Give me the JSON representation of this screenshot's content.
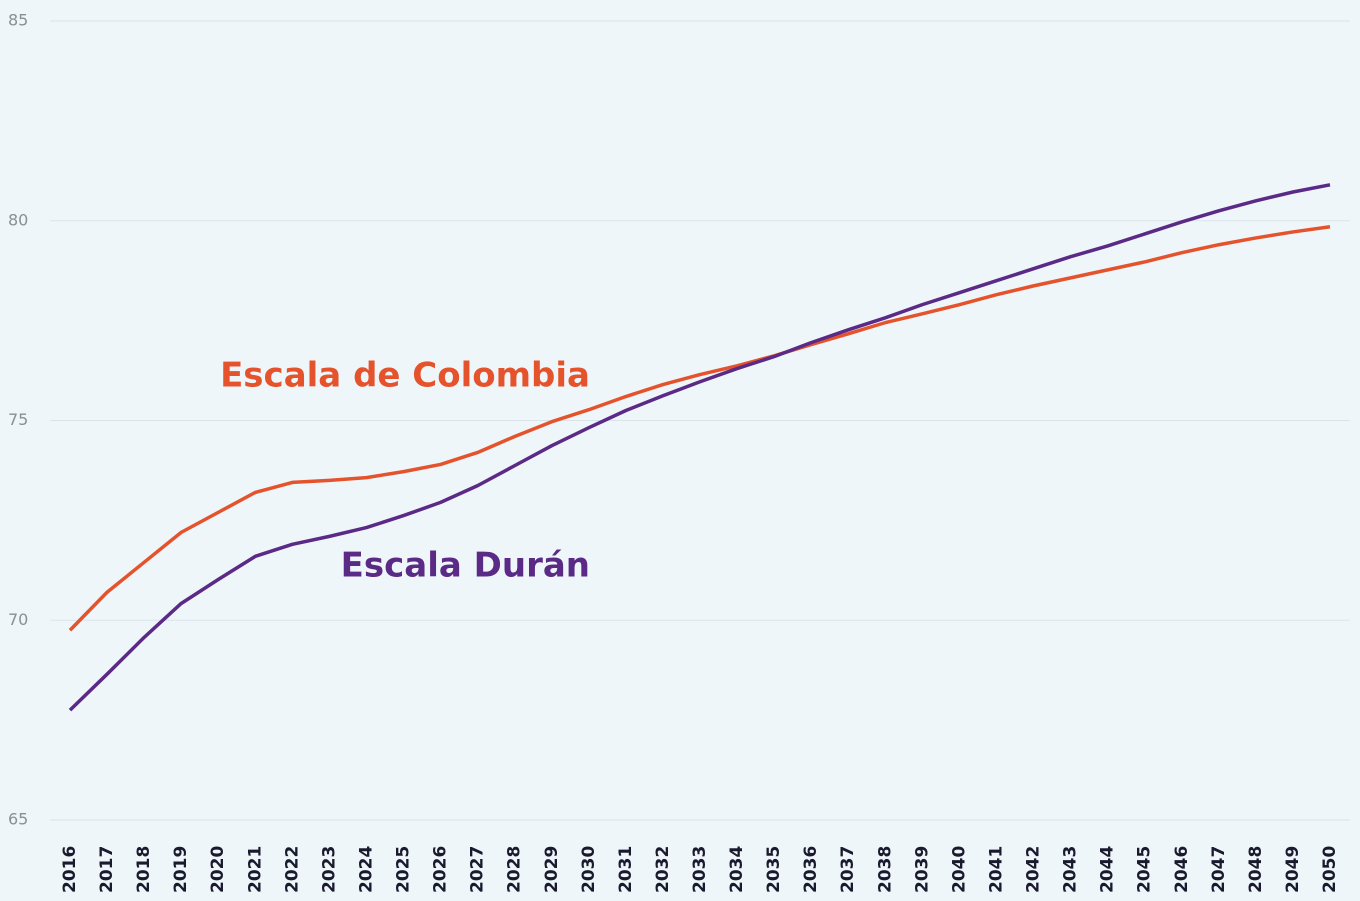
{
  "chart_data": {
    "type": "line",
    "categories": [
      "2016",
      "2017",
      "2018",
      "2019",
      "2020",
      "2021",
      "2022",
      "2023",
      "2024",
      "2025",
      "2026",
      "2027",
      "2028",
      "2029",
      "2030",
      "2031",
      "2032",
      "2033",
      "2034",
      "2035",
      "2036",
      "2037",
      "2038",
      "2039",
      "2040",
      "2041",
      "2042",
      "2043",
      "2044",
      "2045",
      "2046",
      "2047",
      "2048",
      "2049",
      "2050"
    ],
    "series": [
      {
        "name": "Escala de Colombia",
        "color": "#e5532c",
        "values": [
          69.75,
          70.7,
          71.45,
          72.2,
          72.7,
          73.2,
          73.45,
          73.5,
          73.57,
          73.72,
          73.9,
          74.2,
          74.6,
          74.97,
          75.27,
          75.6,
          75.9,
          76.15,
          76.37,
          76.62,
          76.9,
          77.17,
          77.45,
          77.67,
          77.9,
          78.15,
          78.37,
          78.57,
          78.77,
          78.97,
          79.2,
          79.4,
          79.57,
          79.72,
          79.85
        ]
      },
      {
        "name": "Escala Durán",
        "color": "#5b2a86",
        "values": [
          67.75,
          68.65,
          69.57,
          70.42,
          71.02,
          71.6,
          71.9,
          72.1,
          72.32,
          72.62,
          72.95,
          73.37,
          73.87,
          74.37,
          74.82,
          75.25,
          75.62,
          75.97,
          76.3,
          76.6,
          76.95,
          77.27,
          77.57,
          77.9,
          78.2,
          78.5,
          78.8,
          79.1,
          79.37,
          79.67,
          79.97,
          80.25,
          80.5,
          80.72,
          80.9
        ]
      }
    ],
    "ylim": [
      65,
      85
    ],
    "yticks": [
      65,
      70,
      75,
      80,
      85
    ],
    "grid": true
  }
}
